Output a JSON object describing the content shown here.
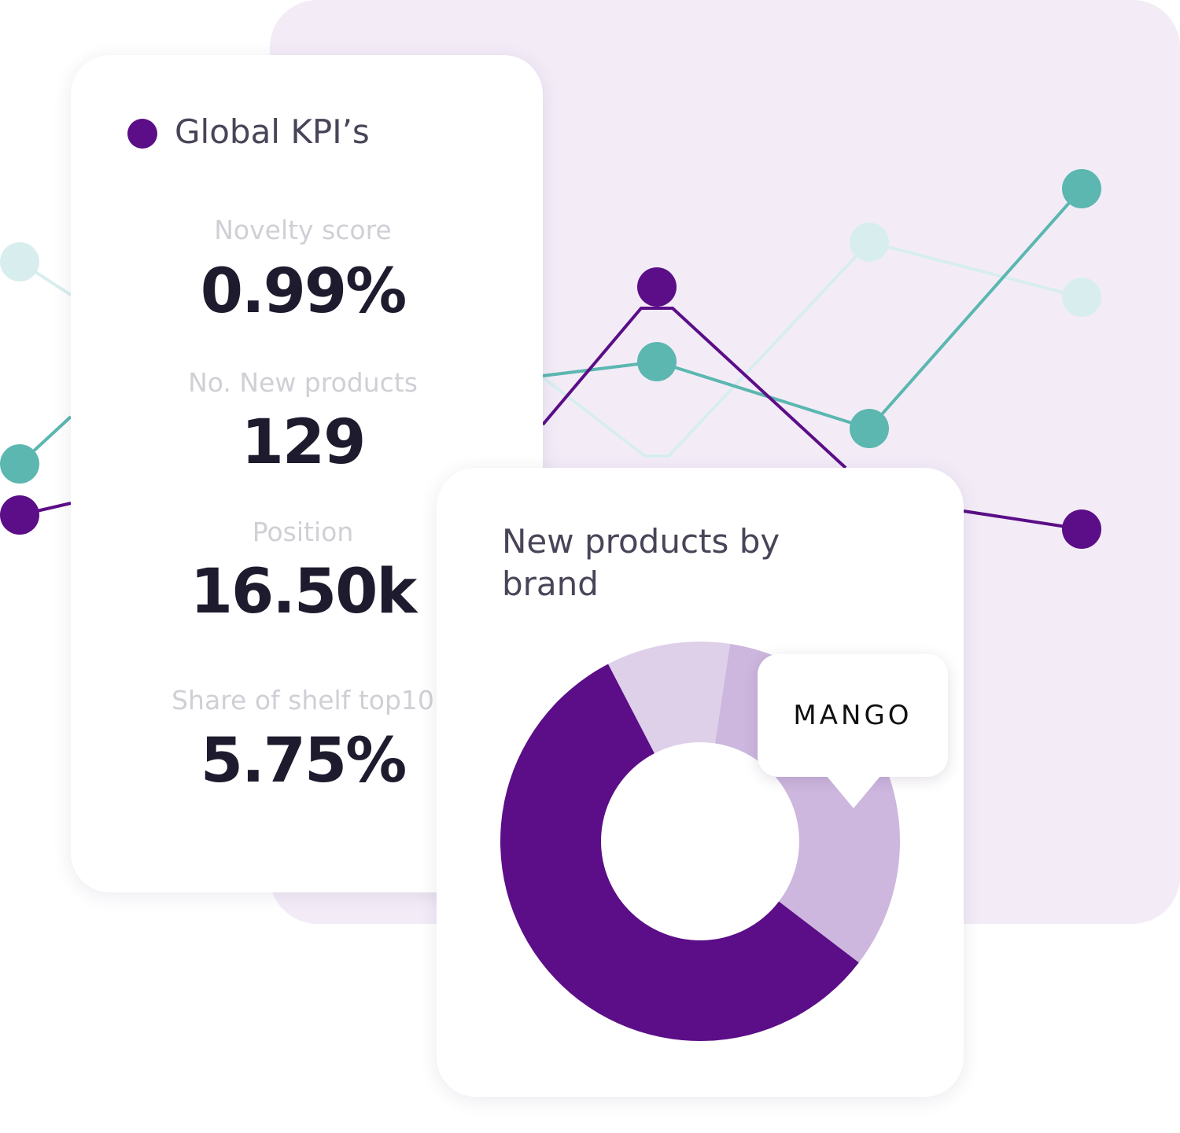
{
  "kpi_card": {
    "title": "Global KPI’s",
    "items": [
      {
        "label": "Novelty score",
        "value": "0.99%"
      },
      {
        "label": "No. New products",
        "value": "129"
      },
      {
        "label": "Position",
        "value": "16.50k"
      },
      {
        "label": "Share of shelf top10",
        "value": "5.75%"
      }
    ]
  },
  "chart_data": {
    "type": "pie",
    "title": "New products by brand",
    "values": [
      33,
      57,
      10
    ],
    "colors": [
      "#cdb7de",
      "#5b0e87",
      "#dfd0e9"
    ],
    "tooltip": "MANGO"
  }
}
